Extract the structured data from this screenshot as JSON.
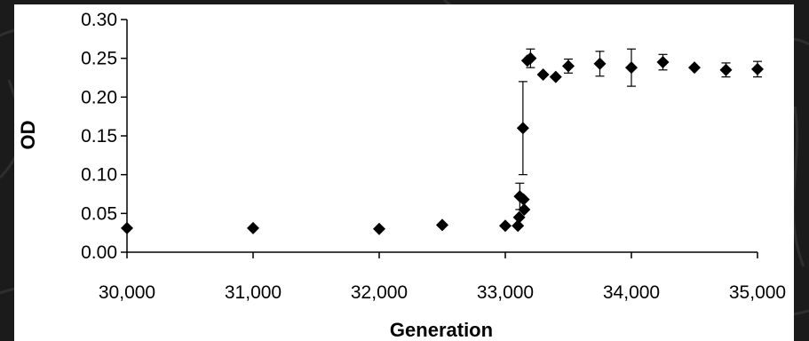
{
  "chart_data": {
    "type": "scatter",
    "title": "",
    "xlabel": "Generation",
    "ylabel": "OD",
    "xlim": [
      30000,
      35000
    ],
    "ylim": [
      0,
      0.3
    ],
    "grid": false,
    "legend": "none",
    "x_ticks": [
      30000,
      31000,
      32000,
      33000,
      34000,
      35000
    ],
    "x_tick_labels": [
      "30,000",
      "31,000",
      "32,000",
      "33,000",
      "34,000",
      "35,000"
    ],
    "y_ticks": [
      0,
      0.05,
      0.1,
      0.15,
      0.2,
      0.25,
      0.3
    ],
    "y_tick_labels": [
      "0.00",
      "0.05",
      "0.10",
      "0.15",
      "0.20",
      "0.25",
      "0.30"
    ],
    "marker": "diamond",
    "marker_color": "#000000",
    "points": [
      {
        "x": 30000,
        "y": 0.031
      },
      {
        "x": 31000,
        "y": 0.031
      },
      {
        "x": 32000,
        "y": 0.03
      },
      {
        "x": 32500,
        "y": 0.035
      },
      {
        "x": 33000,
        "y": 0.034
      },
      {
        "x": 33100,
        "y": 0.034
      },
      {
        "x": 33110,
        "y": 0.045
      },
      {
        "x": 33115,
        "y": 0.072,
        "err": 0.017
      },
      {
        "x": 33140,
        "y": 0.16,
        "err": 0.06
      },
      {
        "x": 33145,
        "y": 0.068
      },
      {
        "x": 33150,
        "y": 0.055
      },
      {
        "x": 33175,
        "y": 0.247
      },
      {
        "x": 33200,
        "y": 0.25,
        "err": 0.012
      },
      {
        "x": 33300,
        "y": 0.229
      },
      {
        "x": 33400,
        "y": 0.226
      },
      {
        "x": 33500,
        "y": 0.24,
        "err": 0.009
      },
      {
        "x": 33750,
        "y": 0.243,
        "err": 0.016
      },
      {
        "x": 34000,
        "y": 0.238,
        "err": 0.024
      },
      {
        "x": 34250,
        "y": 0.245,
        "err": 0.01
      },
      {
        "x": 34500,
        "y": 0.238
      },
      {
        "x": 34750,
        "y": 0.235,
        "err": 0.009
      },
      {
        "x": 35000,
        "y": 0.236,
        "err": 0.01
      }
    ]
  }
}
